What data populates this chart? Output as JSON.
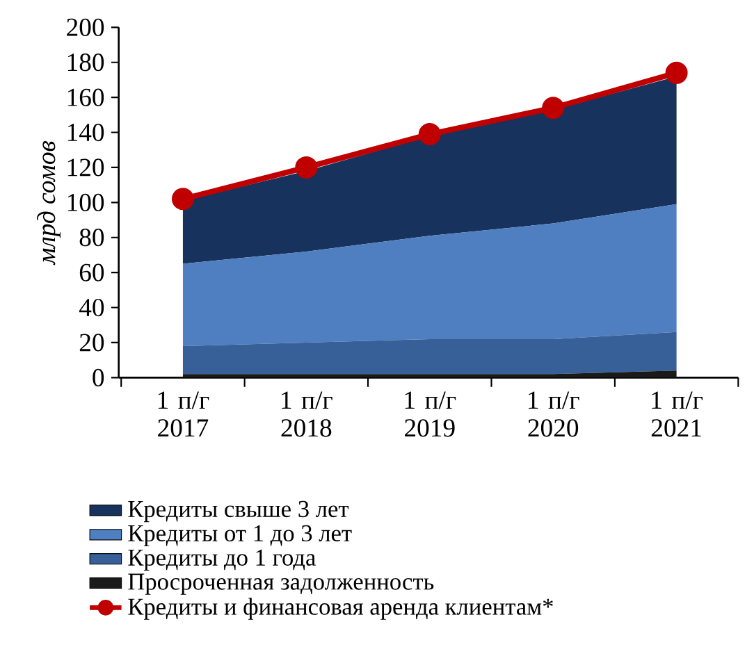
{
  "chart_data": {
    "type": "area",
    "stacked": true,
    "ylabel": "млрд сомов",
    "categories": [
      "1 п/г 2017",
      "1 п/г 2018",
      "1 п/г 2019",
      "1 п/г 2020",
      "1 п/г 2021"
    ],
    "series": [
      {
        "name": "Просроченная задолженность",
        "color": "#1a1a1a",
        "values": [
          2,
          2,
          2,
          2,
          4
        ]
      },
      {
        "name": "Кредиты до 1 года",
        "color": "#386098",
        "values": [
          16,
          18,
          20,
          20,
          22
        ]
      },
      {
        "name": "Кредиты от 1 до 3 лет",
        "color": "#4f7fc0",
        "values": [
          47,
          52,
          59,
          66,
          73
        ]
      },
      {
        "name": "Кредиты свыше 3 лет",
        "color": "#17325c",
        "values": [
          36,
          46,
          57,
          65,
          73
        ]
      },
      {
        "name": "Кредиты и финансовая аренда клиентам*",
        "type": "line",
        "color": "#c00000",
        "marker": "circle",
        "values": [
          102,
          120,
          139,
          154,
          174
        ]
      }
    ],
    "ylim": [
      0,
      200
    ],
    "yticks": [
      0,
      20,
      40,
      60,
      80,
      100,
      120,
      140,
      160,
      180,
      200
    ],
    "legend": "bottom",
    "grid": false
  }
}
